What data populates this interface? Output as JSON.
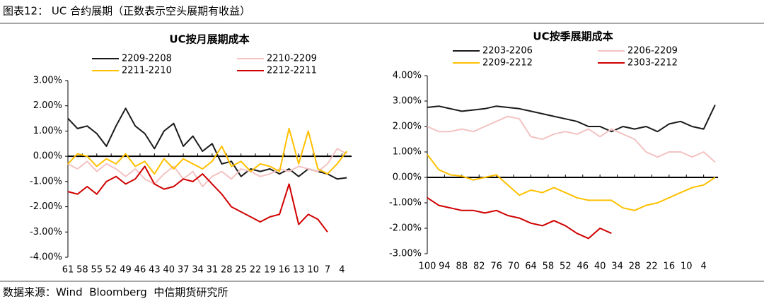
{
  "header": {
    "title": "图表12： UC 合约展期（正数表示空头展期有收益）"
  },
  "footer": {
    "source": "数据来源：Wind  Bloomberg  中信期货研究所"
  },
  "chart_data": [
    {
      "type": "line",
      "title": "UC按月展期成本",
      "x": [
        61,
        59,
        57,
        55,
        53,
        51,
        49,
        47,
        45,
        43,
        41,
        39,
        37,
        35,
        33,
        31,
        29,
        27,
        25,
        23,
        21,
        19,
        17,
        15,
        13,
        11,
        9,
        7,
        5,
        3
      ],
      "xlim": [
        61,
        2
      ],
      "xticks": [
        61,
        58,
        55,
        52,
        49,
        46,
        43,
        40,
        37,
        34,
        31,
        28,
        25,
        22,
        19,
        16,
        13,
        10,
        7,
        4
      ],
      "ylim": [
        -4,
        3
      ],
      "yticks": [
        {
          "value": -4,
          "label": "-4.00%"
        },
        {
          "value": -3,
          "label": "-3.00%"
        },
        {
          "value": -2,
          "label": "-2.00%"
        },
        {
          "value": -1,
          "label": "-1.00%"
        },
        {
          "value": 0,
          "label": "0.00%"
        },
        {
          "value": 1,
          "label": "1.00%"
        },
        {
          "value": 2,
          "label": "2.00%"
        },
        {
          "value": 3,
          "label": "3.00%"
        }
      ],
      "series": [
        {
          "name": "2209-2208",
          "color": "#1a1a1a",
          "values": [
            1.5,
            1.1,
            1.2,
            0.9,
            0.4,
            1.2,
            1.9,
            1.2,
            0.9,
            0.3,
            1.0,
            1.3,
            0.4,
            0.8,
            0.2,
            0.5,
            -0.3,
            -0.2,
            -0.8,
            -0.5,
            -0.6,
            -0.5,
            -0.7,
            -0.5,
            -0.8,
            -0.5,
            -0.6,
            -0.7,
            -0.9,
            -0.85
          ]
        },
        {
          "name": "2210-2209",
          "color": "#f4c2c2",
          "values": [
            -0.3,
            -0.5,
            -0.2,
            -0.6,
            -0.3,
            -0.5,
            -0.8,
            -0.5,
            -0.9,
            -1.1,
            -0.7,
            -0.4,
            -0.9,
            -0.6,
            -1.2,
            -0.8,
            -0.6,
            -0.9,
            -0.5,
            -0.6,
            -0.8,
            -0.7,
            -0.5,
            -0.6,
            -0.4,
            -0.5,
            -0.6,
            -0.3,
            0.3,
            0.1
          ]
        },
        {
          "name": "2211-2210",
          "color": "#ffc000",
          "values": [
            -0.3,
            0.1,
            0.0,
            -0.4,
            -0.1,
            -0.3,
            0.1,
            -0.4,
            -0.2,
            -0.7,
            -0.1,
            -0.5,
            -0.1,
            -0.3,
            -0.5,
            -0.2,
            0.4,
            -0.4,
            -0.2,
            -0.6,
            -0.3,
            -0.4,
            -0.6,
            1.1,
            -0.3,
            1.0,
            -0.5,
            -0.7,
            -0.3,
            0.2
          ]
        },
        {
          "name": "2212-2211",
          "color": "#d00000",
          "values": [
            -1.4,
            -1.5,
            -1.2,
            -1.5,
            -1.0,
            -0.8,
            -1.1,
            -0.9,
            -0.4,
            -1.1,
            -1.3,
            -1.2,
            -0.9,
            -1.0,
            -0.7,
            -1.1,
            -1.5,
            -2.0,
            -2.2,
            -2.4,
            -2.6,
            -2.4,
            -2.3,
            -1.1,
            -2.7,
            -2.3,
            -2.5,
            -3.0,
            null,
            null
          ]
        }
      ]
    },
    {
      "type": "line",
      "title": "UC按季展期成本",
      "x": [
        100,
        96,
        92,
        88,
        84,
        80,
        76,
        72,
        68,
        64,
        60,
        56,
        52,
        48,
        44,
        40,
        36,
        32,
        28,
        24,
        20,
        16,
        12,
        8,
        4,
        0
      ],
      "xlim": [
        100,
        -1
      ],
      "xticks": [
        100,
        94,
        88,
        82,
        76,
        70,
        64,
        58,
        52,
        46,
        40,
        34,
        28,
        22,
        16,
        10,
        4
      ],
      "ylim": [
        -3,
        4
      ],
      "yticks": [
        {
          "value": -3,
          "label": "-3.00%"
        },
        {
          "value": -2,
          "label": "-2.00%"
        },
        {
          "value": -1,
          "label": "-1.00%"
        },
        {
          "value": 0,
          "label": "0.00%"
        },
        {
          "value": 1,
          "label": "1.00%"
        },
        {
          "value": 2,
          "label": "2.00%"
        },
        {
          "value": 3,
          "label": "3.00%"
        },
        {
          "value": 4,
          "label": "4.00%"
        }
      ],
      "series": [
        {
          "name": "2203-2206",
          "color": "#1a1a1a",
          "values": [
            2.75,
            2.8,
            2.7,
            2.6,
            2.65,
            2.7,
            2.8,
            2.75,
            2.7,
            2.6,
            2.5,
            2.4,
            2.3,
            2.2,
            2.0,
            2.0,
            1.8,
            2.0,
            1.9,
            2.0,
            1.8,
            2.1,
            2.2,
            2.0,
            1.9,
            2.85
          ]
        },
        {
          "name": "2206-2209",
          "color": "#f4c2c2",
          "values": [
            2.0,
            1.8,
            1.8,
            1.9,
            1.8,
            2.0,
            2.2,
            2.4,
            2.3,
            1.6,
            1.5,
            1.7,
            1.8,
            1.7,
            1.9,
            1.6,
            1.9,
            1.7,
            1.5,
            1.0,
            0.8,
            1.0,
            1.0,
            0.8,
            1.0,
            0.6
          ]
        },
        {
          "name": "2209-2212",
          "color": "#ffc000",
          "values": [
            0.9,
            0.3,
            0.1,
            0.05,
            -0.1,
            0.0,
            0.1,
            -0.3,
            -0.7,
            -0.5,
            -0.6,
            -0.4,
            -0.6,
            -0.8,
            -0.9,
            -0.9,
            -0.9,
            -1.2,
            -1.3,
            -1.1,
            -1.0,
            -0.8,
            -0.6,
            -0.4,
            -0.3,
            0.0
          ]
        },
        {
          "name": "2303-2212",
          "color": "#d00000",
          "values": [
            -0.8,
            -1.1,
            -1.2,
            -1.3,
            -1.3,
            -1.4,
            -1.3,
            -1.5,
            -1.6,
            -1.8,
            -1.9,
            -1.7,
            -1.9,
            -2.2,
            -2.4,
            -2.0,
            -2.2,
            null,
            null,
            null,
            null,
            null,
            null,
            null,
            null,
            null
          ]
        }
      ]
    }
  ]
}
